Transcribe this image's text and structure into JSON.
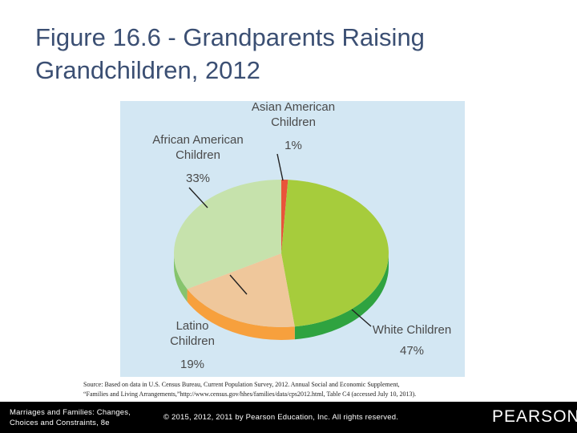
{
  "title": {
    "line1": "Figure 16.6 - Grandparents Raising",
    "line2": "Grandchildren, 2012"
  },
  "chart_data": {
    "type": "pie",
    "slices": [
      {
        "label_lines": [
          "White Children"
        ],
        "pct_label": "47%",
        "value": 47,
        "top_color": "#a6cc3c",
        "side_color": "#2fa340"
      },
      {
        "label_lines": [
          "Latino",
          "Children"
        ],
        "pct_label": "19%",
        "value": 19,
        "top_color": "#efc79b",
        "side_color": "#f7a03d"
      },
      {
        "label_lines": [
          "African American",
          "Children"
        ],
        "pct_label": "33%",
        "value": 33,
        "top_color": "#c6e2ac",
        "side_color": "#86c46d"
      },
      {
        "label_lines": [
          "Asian American",
          "Children"
        ],
        "pct_label": "1%",
        "value": 1,
        "top_color": "#e9543a",
        "side_color": "#c73b23"
      }
    ]
  },
  "source": {
    "line1": "Source: Based on data in U.S. Census Bureau, Current Population Survey, 2012. Annual Social and Economic Supplement,",
    "line2": "“Families and Living Arrangements,”http://www.census.gov/hhes/families/data/cps2012.html, Table C4 (accessed July 10, 2013)."
  },
  "footer": {
    "book_line1": "Marriages and Families: Changes,",
    "book_line2": "Choices and Constraints, 8e",
    "copyright": "© 2015, 2012, 2011 by Pearson Education, Inc. All rights reserved.",
    "brand": "PEARSON"
  }
}
